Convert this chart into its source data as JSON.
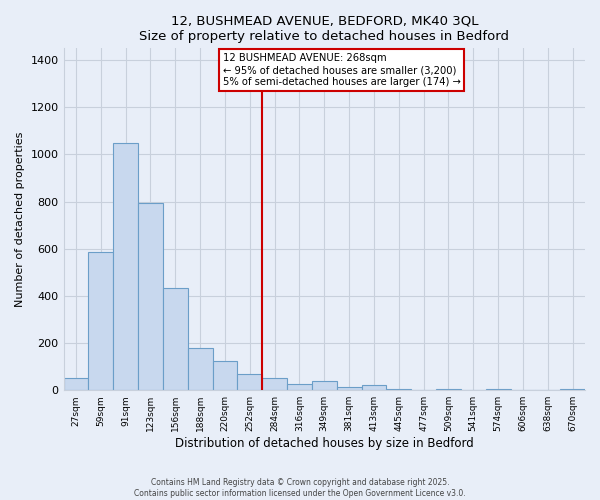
{
  "title": "12, BUSHMEAD AVENUE, BEDFORD, MK40 3QL",
  "subtitle": "Size of property relative to detached houses in Bedford",
  "xlabel": "Distribution of detached houses by size in Bedford",
  "ylabel": "Number of detached properties",
  "bin_labels": [
    "27sqm",
    "59sqm",
    "91sqm",
    "123sqm",
    "156sqm",
    "188sqm",
    "220sqm",
    "252sqm",
    "284sqm",
    "316sqm",
    "349sqm",
    "381sqm",
    "413sqm",
    "445sqm",
    "477sqm",
    "509sqm",
    "541sqm",
    "574sqm",
    "606sqm",
    "638sqm",
    "670sqm"
  ],
  "bar_color": "#c8d8ee",
  "bar_edge_color": "#6b9ec8",
  "vline_label": "12 BUSHMEAD AVENUE: 268sqm",
  "annotation_line1": "← 95% of detached houses are smaller (3,200)",
  "annotation_line2": "5% of semi-detached houses are larger (174) →",
  "annotation_box_color": "#ffffff",
  "annotation_box_edge": "#cc0000",
  "vline_color": "#cc0000",
  "ylim": [
    0,
    1450
  ],
  "yticks": [
    0,
    200,
    400,
    600,
    800,
    1000,
    1200,
    1400
  ],
  "footer1": "Contains HM Land Registry data © Crown copyright and database right 2025.",
  "footer2": "Contains public sector information licensed under the Open Government Licence v3.0.",
  "bg_color": "#e8eef8",
  "grid_color": "#c8d0dc",
  "bar_heights": [
    50,
    585,
    1050,
    795,
    435,
    180,
    125,
    70,
    50,
    25,
    40,
    15,
    20,
    5,
    0,
    5,
    0,
    5,
    0,
    0,
    5
  ],
  "vline_bin_index": 8,
  "n_bins": 21
}
